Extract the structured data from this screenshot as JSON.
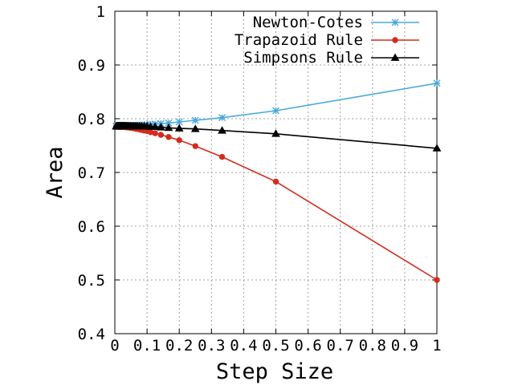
{
  "chart_data": {
    "type": "line",
    "title": "",
    "xlabel": "Step Size",
    "ylabel": "Area",
    "xlim": [
      0,
      1
    ],
    "ylim": [
      0.4,
      1
    ],
    "x_ticks": [
      {
        "value": 0,
        "label": "0"
      },
      {
        "value": 0.1,
        "label": "0.1"
      },
      {
        "value": 0.2,
        "label": "0.2"
      },
      {
        "value": 0.3,
        "label": "0.3"
      },
      {
        "value": 0.4,
        "label": "0.4"
      },
      {
        "value": 0.5,
        "label": "0.5"
      },
      {
        "value": 0.6,
        "label": "0.6"
      },
      {
        "value": 0.7,
        "label": "0.7"
      },
      {
        "value": 0.8,
        "label": "0.8"
      },
      {
        "value": 0.9,
        "label": "0.9"
      },
      {
        "value": 1,
        "label": "1"
      }
    ],
    "y_ticks": [
      {
        "value": 0.4,
        "label": "0.4"
      },
      {
        "value": 0.5,
        "label": "0.5"
      },
      {
        "value": 0.6,
        "label": "0.6"
      },
      {
        "value": 0.7,
        "label": "0.7"
      },
      {
        "value": 0.8,
        "label": "0.8"
      },
      {
        "value": 0.9,
        "label": "0.9"
      },
      {
        "value": 1,
        "label": "1"
      }
    ],
    "grid": true,
    "legend_position": "top-right",
    "series": [
      {
        "name": "Newton-Cotes",
        "color": "#4ba9dc",
        "marker": "star",
        "x": [
          1,
          0.5,
          0.333,
          0.25,
          0.2,
          0.167,
          0.143,
          0.125,
          0.111,
          0.1,
          0.091,
          0.083,
          0.077,
          0.071,
          0.067,
          0.063,
          0.059,
          0.056,
          0.053,
          0.05,
          0.048,
          0.045,
          0.043,
          0.042,
          0.04,
          0.038,
          0.037,
          0.036,
          0.034,
          0.033,
          0.032,
          0.031,
          0.03,
          0.029,
          0.029,
          0.028,
          0.027,
          0.026,
          0.026,
          0.025,
          0.024,
          0.024,
          0.023,
          0.023,
          0.022,
          0.022,
          0.021,
          0.021,
          0.02,
          0.02,
          0.019,
          0.018,
          0.017,
          0.016,
          0.015,
          0.014,
          0.013,
          0.012,
          0.011,
          0.01,
          0.009,
          0.008,
          0.007,
          0.006,
          0.005,
          0.004
        ],
        "y": [
          0.866,
          0.815,
          0.802,
          0.797,
          0.794,
          0.792,
          0.791,
          0.79,
          0.789,
          0.789,
          0.788,
          0.788,
          0.788,
          0.788,
          0.787,
          0.787,
          0.787,
          0.787,
          0.787,
          0.787,
          0.787,
          0.787,
          0.787,
          0.787,
          0.787,
          0.787,
          0.786,
          0.786,
          0.786,
          0.786,
          0.786,
          0.786,
          0.786,
          0.786,
          0.786,
          0.786,
          0.786,
          0.786,
          0.786,
          0.786,
          0.786,
          0.786,
          0.786,
          0.786,
          0.786,
          0.786,
          0.786,
          0.786,
          0.786,
          0.786,
          0.786,
          0.786,
          0.786,
          0.786,
          0.786,
          0.786,
          0.786,
          0.786,
          0.786,
          0.786,
          0.786,
          0.786,
          0.786,
          0.786,
          0.786,
          0.786
        ]
      },
      {
        "name": "Trapazoid Rule",
        "color": "#d42b1e",
        "marker": "circle",
        "x": [
          1,
          0.5,
          0.333,
          0.25,
          0.2,
          0.167,
          0.143,
          0.125,
          0.111,
          0.1,
          0.091,
          0.083,
          0.077,
          0.071,
          0.067,
          0.063,
          0.059,
          0.056,
          0.053,
          0.05,
          0.048,
          0.045,
          0.043,
          0.042,
          0.04,
          0.038,
          0.037,
          0.036,
          0.034,
          0.033,
          0.032,
          0.031,
          0.03,
          0.029,
          0.029,
          0.028,
          0.027,
          0.026,
          0.026,
          0.025,
          0.024,
          0.024,
          0.023,
          0.023,
          0.022,
          0.022,
          0.021,
          0.021,
          0.02,
          0.02,
          0.019,
          0.018,
          0.017,
          0.016,
          0.015,
          0.014,
          0.013,
          0.012,
          0.011,
          0.01,
          0.009,
          0.008,
          0.007,
          0.006,
          0.005,
          0.004
        ],
        "y": [
          0.5,
          0.683,
          0.729,
          0.749,
          0.76,
          0.766,
          0.77,
          0.773,
          0.775,
          0.777,
          0.778,
          0.779,
          0.78,
          0.781,
          0.781,
          0.782,
          0.782,
          0.783,
          0.783,
          0.783,
          0.783,
          0.784,
          0.784,
          0.784,
          0.784,
          0.784,
          0.784,
          0.784,
          0.785,
          0.785,
          0.785,
          0.785,
          0.785,
          0.785,
          0.785,
          0.785,
          0.785,
          0.785,
          0.785,
          0.785,
          0.785,
          0.785,
          0.785,
          0.785,
          0.785,
          0.785,
          0.785,
          0.785,
          0.785,
          0.785,
          0.785,
          0.785,
          0.785,
          0.785,
          0.785,
          0.785,
          0.785,
          0.785,
          0.785,
          0.785,
          0.785,
          0.785,
          0.785,
          0.785,
          0.785,
          0.785
        ]
      },
      {
        "name": "Simpsons Rule",
        "color": "#000000",
        "marker": "triangle",
        "x": [
          1,
          0.5,
          0.333,
          0.25,
          0.2,
          0.167,
          0.143,
          0.125,
          0.111,
          0.1,
          0.091,
          0.083,
          0.077,
          0.071,
          0.067,
          0.063,
          0.059,
          0.056,
          0.053,
          0.05,
          0.048,
          0.045,
          0.043,
          0.042,
          0.04,
          0.038,
          0.037,
          0.036,
          0.034,
          0.033,
          0.032,
          0.031,
          0.03,
          0.029,
          0.029,
          0.028,
          0.027,
          0.026,
          0.026,
          0.025,
          0.024,
          0.024,
          0.023,
          0.023,
          0.022,
          0.022,
          0.021,
          0.021,
          0.02,
          0.02,
          0.019,
          0.018,
          0.017,
          0.016,
          0.015,
          0.014,
          0.013,
          0.012,
          0.011,
          0.01,
          0.009,
          0.008,
          0.007,
          0.006,
          0.005,
          0.004
        ],
        "y": [
          0.745,
          0.772,
          0.778,
          0.781,
          0.782,
          0.783,
          0.784,
          0.785,
          0.785,
          0.786,
          0.786,
          0.786,
          0.786,
          0.786,
          0.786,
          0.786,
          0.786,
          0.786,
          0.786,
          0.786,
          0.786,
          0.786,
          0.786,
          0.786,
          0.786,
          0.786,
          0.786,
          0.786,
          0.786,
          0.786,
          0.786,
          0.786,
          0.786,
          0.786,
          0.786,
          0.786,
          0.786,
          0.786,
          0.786,
          0.786,
          0.786,
          0.786,
          0.786,
          0.786,
          0.786,
          0.786,
          0.786,
          0.786,
          0.786,
          0.786,
          0.786,
          0.786,
          0.786,
          0.786,
          0.786,
          0.786,
          0.786,
          0.786,
          0.786,
          0.786,
          0.786,
          0.786,
          0.786,
          0.786,
          0.786,
          0.786
        ]
      }
    ]
  }
}
